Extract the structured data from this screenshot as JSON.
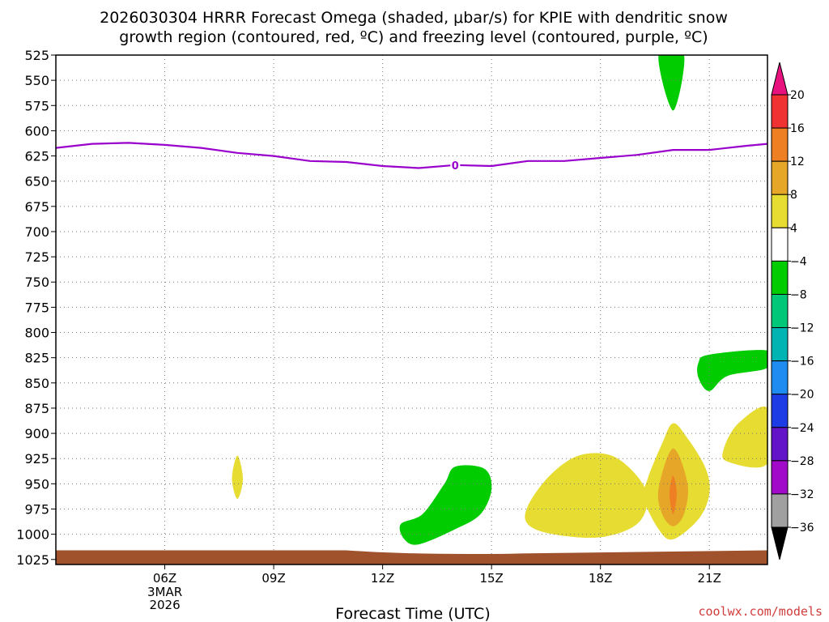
{
  "chart_data": {
    "type": "contour",
    "title_line1": "2026030304 HRRR Forecast Omega (shaded, μbar/s) for KPIE with dendritic snow",
    "title_line2": "growth region (contoured, red, ºC) and freezing level (contoured, purple, ºC)",
    "xlabel": "Forecast Time (UTC)",
    "x_hours_range": [
      3,
      22.6
    ],
    "x_ticks": [
      {
        "hour": 6,
        "label": "06Z"
      },
      {
        "hour": 9,
        "label": "09Z"
      },
      {
        "hour": 12,
        "label": "12Z"
      },
      {
        "hour": 15,
        "label": "15Z"
      },
      {
        "hour": 18,
        "label": "18Z"
      },
      {
        "hour": 21,
        "label": "21Z"
      }
    ],
    "date_label": [
      "3MAR",
      "2026"
    ],
    "y_ticks": [
      525,
      550,
      575,
      600,
      625,
      650,
      675,
      700,
      725,
      750,
      775,
      800,
      825,
      850,
      875,
      900,
      925,
      950,
      975,
      1000,
      1025
    ],
    "y_range_hpa": [
      525,
      1030
    ],
    "freezing_level": {
      "label": "0",
      "color": "#9900cc",
      "points": [
        [
          3,
          617
        ],
        [
          4,
          613
        ],
        [
          5,
          612
        ],
        [
          6,
          614
        ],
        [
          7,
          617
        ],
        [
          8,
          622
        ],
        [
          9,
          625
        ],
        [
          10,
          630
        ],
        [
          11,
          631
        ],
        [
          12,
          635
        ],
        [
          13,
          637
        ],
        [
          14,
          634
        ],
        [
          15,
          635
        ],
        [
          16,
          630
        ],
        [
          17,
          630
        ],
        [
          18,
          627
        ],
        [
          19,
          624
        ],
        [
          20,
          619
        ],
        [
          21,
          619
        ],
        [
          22,
          615
        ],
        [
          22.6,
          613
        ]
      ]
    },
    "ground": {
      "color": "#a0522d"
    },
    "omega_regions": [
      {
        "class": "-8 to -4",
        "color": "#00cc00",
        "points": [
          [
            19.6,
            525
          ],
          [
            20.3,
            525
          ],
          [
            20.0,
            580
          ]
        ]
      },
      {
        "class": "4 to 8",
        "color": "#e6dc32",
        "points": [
          [
            8.0,
            922
          ],
          [
            8.15,
            945
          ],
          [
            8.0,
            965
          ],
          [
            7.85,
            945
          ]
        ]
      },
      {
        "class": "-8 to -4",
        "color": "#00cc00",
        "points": [
          [
            12.5,
            990
          ],
          [
            13.1,
            980
          ],
          [
            13.7,
            950
          ],
          [
            14.0,
            933
          ],
          [
            14.8,
            935
          ],
          [
            15.0,
            955
          ],
          [
            14.7,
            980
          ],
          [
            14.0,
            995
          ],
          [
            13.0,
            1010
          ],
          [
            12.6,
            1005
          ]
        ]
      },
      {
        "class": "4 to 8",
        "color": "#e6dc32",
        "points": [
          [
            16.0,
            972
          ],
          [
            16.6,
            942
          ],
          [
            17.4,
            922
          ],
          [
            18.3,
            922
          ],
          [
            19.0,
            942
          ],
          [
            19.3,
            965
          ],
          [
            19.0,
            990
          ],
          [
            18.0,
            1003
          ],
          [
            16.7,
            1000
          ],
          [
            16.0,
            990
          ]
        ]
      },
      {
        "class": "4 to 8",
        "color": "#e6dc32",
        "points": [
          [
            19.3,
            945
          ],
          [
            19.7,
            910
          ],
          [
            20.0,
            890
          ],
          [
            20.4,
            905
          ],
          [
            20.9,
            935
          ],
          [
            21.0,
            960
          ],
          [
            20.7,
            985
          ],
          [
            20.0,
            1005
          ],
          [
            19.6,
            995
          ],
          [
            19.2,
            965
          ]
        ]
      },
      {
        "class": "8 to 12",
        "color": "#e6a628",
        "points": [
          [
            19.6,
            955
          ],
          [
            20.0,
            915
          ],
          [
            20.4,
            950
          ],
          [
            20.3,
            980
          ],
          [
            20.0,
            992
          ],
          [
            19.7,
            980
          ]
        ]
      },
      {
        "class": "12 to 16",
        "color": "#ee7f22",
        "points": [
          [
            20.0,
            942
          ],
          [
            20.1,
            960
          ],
          [
            20.0,
            980
          ],
          [
            19.9,
            960
          ]
        ]
      },
      {
        "class": "4 to 8",
        "color": "#e6dc32",
        "points": [
          [
            21.4,
            915
          ],
          [
            21.8,
            890
          ],
          [
            22.6,
            875
          ],
          [
            22.6,
            930
          ],
          [
            21.5,
            928
          ]
        ]
      },
      {
        "class": "-8 to -4",
        "color": "#00cc00",
        "points": [
          [
            20.7,
            830
          ],
          [
            21.0,
            822
          ],
          [
            22.6,
            818
          ],
          [
            22.6,
            835
          ],
          [
            21.5,
            843
          ],
          [
            21.0,
            858
          ],
          [
            20.7,
            845
          ]
        ]
      }
    ],
    "colorbar": {
      "labels": [
        "20",
        "16",
        "12",
        "8",
        "4",
        "-4",
        "-8",
        "-12",
        "-16",
        "-20",
        "-24",
        "-28",
        "-32",
        "-36"
      ],
      "top_arrow_color": "#e8127e",
      "bottom_arrow_color": "#000000",
      "segments": [
        {
          "color": "#f03232"
        },
        {
          "color": "#ee7f22"
        },
        {
          "color": "#e6a628"
        },
        {
          "color": "#e6dc32"
        },
        {
          "color": "#ffffff"
        },
        {
          "color": "#00cc00"
        },
        {
          "color": "#00c878"
        },
        {
          "color": "#00b4b4"
        },
        {
          "color": "#1e8cf0"
        },
        {
          "color": "#1e3ce6"
        },
        {
          "color": "#6414c8"
        },
        {
          "color": "#a00ac8"
        },
        {
          "color": "#a0a0a0"
        }
      ]
    }
  },
  "credit": "coolwx.com/models"
}
